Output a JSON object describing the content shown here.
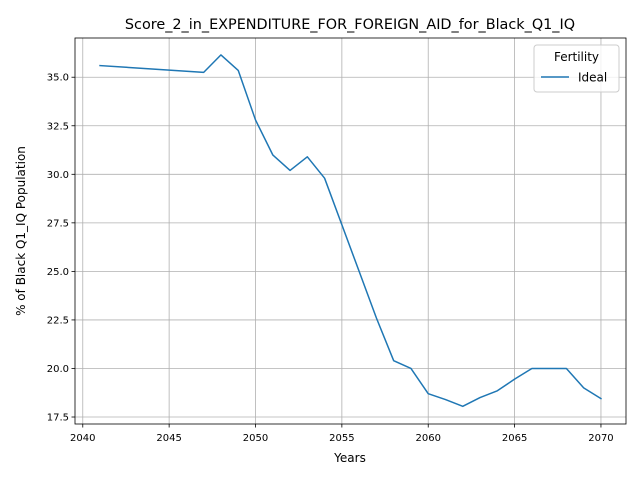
{
  "chart_data": {
    "type": "line",
    "title": "Score_2_in_EXPENDITURE_FOR_FOREIGN_AID_for_Black_Q1_IQ",
    "xlabel": "Years",
    "ylabel": "% of Black Q1_IQ Population",
    "xlim": [
      2039.55,
      2071.45
    ],
    "ylim": [
      17.14,
      37.02
    ],
    "xticks": [
      2040,
      2045,
      2050,
      2055,
      2060,
      2065,
      2070
    ],
    "xtick_labels": [
      "2040",
      "2045",
      "2050",
      "2055",
      "2060",
      "2065",
      "2070"
    ],
    "yticks": [
      17.5,
      20.0,
      22.5,
      25.0,
      27.5,
      30.0,
      32.5,
      35.0
    ],
    "ytick_labels": [
      "17.5",
      "20.0",
      "22.5",
      "25.0",
      "27.5",
      "30.0",
      "32.5",
      "35.0"
    ],
    "grid": true,
    "legend": {
      "title": "Fertility",
      "placement": "top-right"
    },
    "series": [
      {
        "name": "Ideal",
        "color": "#1f77b4",
        "x": [
          2041,
          2047,
          2048,
          2049,
          2050,
          2051,
          2052,
          2053,
          2054,
          2055,
          2056,
          2057,
          2058,
          2059,
          2060,
          2061,
          2062,
          2063,
          2064,
          2065,
          2066,
          2067,
          2068,
          2069,
          2070
        ],
        "y": [
          35.6,
          35.25,
          36.15,
          35.35,
          32.8,
          31.0,
          30.2,
          30.9,
          29.8,
          27.4,
          25.0,
          22.6,
          20.4,
          20.0,
          18.7,
          18.4,
          18.05,
          18.5,
          18.85,
          19.45,
          20.0,
          20.0,
          20.0,
          19.0,
          18.45
        ]
      }
    ]
  }
}
